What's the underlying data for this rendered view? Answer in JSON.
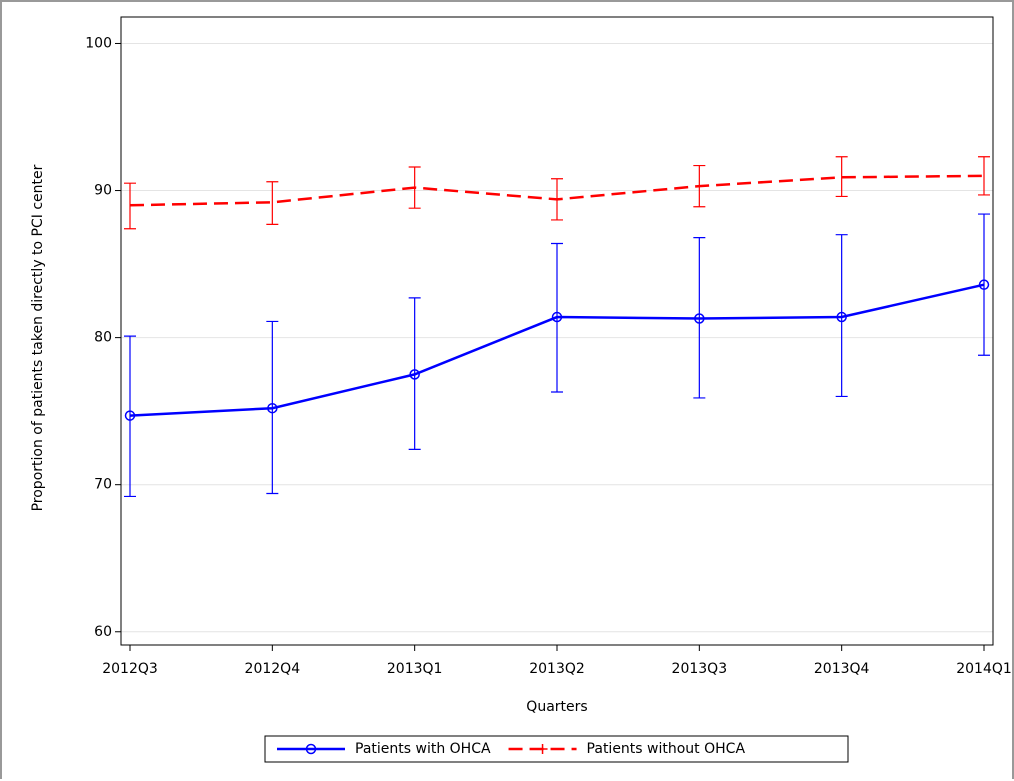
{
  "chart_data": {
    "type": "line",
    "x_label": "Quarters",
    "y_label": "Proportion of patients taken directly to PCI center",
    "categories": [
      "2012Q3",
      "2012Q4",
      "2013Q1",
      "2013Q2",
      "2013Q3",
      "2013Q4",
      "2014Q1"
    ],
    "series": [
      {
        "name": "Patients with OHCA",
        "color": "#0000ff",
        "dashed": false,
        "marker": "circle",
        "values": [
          74.7,
          75.2,
          77.5,
          81.4,
          81.3,
          81.4,
          83.6
        ],
        "lower": [
          69.2,
          69.4,
          72.4,
          76.3,
          75.9,
          76.0,
          78.8
        ],
        "upper": [
          80.1,
          81.1,
          82.7,
          86.4,
          86.8,
          87.0,
          88.4
        ]
      },
      {
        "name": "Patients without OHCA",
        "color": "#ff0000",
        "dashed": true,
        "marker": "plus",
        "values": [
          89.0,
          89.2,
          90.2,
          89.4,
          90.3,
          90.9,
          91.0
        ],
        "lower": [
          87.4,
          87.7,
          88.8,
          88.0,
          88.9,
          89.6,
          89.7
        ],
        "upper": [
          90.5,
          90.6,
          91.6,
          90.8,
          91.7,
          92.3,
          92.3
        ]
      }
    ],
    "ylim": [
      59.1,
      101.8
    ],
    "yticks": [
      60,
      70,
      80,
      90,
      100
    ],
    "grid": true,
    "legend": "bottom"
  }
}
